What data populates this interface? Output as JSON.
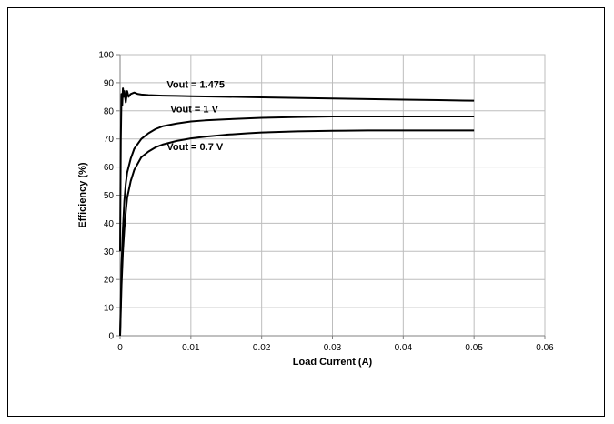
{
  "chart_data": {
    "type": "line",
    "xlabel": "Load Current (A)",
    "ylabel": "Efficiency (%)",
    "xlim": [
      0,
      0.06
    ],
    "ylim": [
      0,
      100
    ],
    "x_ticks": [
      "0",
      "0.01",
      "0.02",
      "0.03",
      "0.04",
      "0.05",
      "0.06"
    ],
    "y_ticks": [
      "0",
      "10",
      "20",
      "30",
      "40",
      "50",
      "60",
      "70",
      "80",
      "90",
      "100"
    ],
    "grid": true,
    "line_color": "#000000",
    "series": [
      {
        "name": "Vout = 1.475",
        "x": [
          0,
          0.0001,
          0.0002,
          0.0003,
          0.0004,
          0.0005,
          0.0006,
          0.0008,
          0.001,
          0.0012,
          0.0015,
          0.002,
          0.0025,
          0.003,
          0.004,
          0.006,
          0.008,
          0.01,
          0.015,
          0.02,
          0.025,
          0.03,
          0.035,
          0.04,
          0.045,
          0.05
        ],
        "y": [
          30,
          70,
          86,
          82,
          88,
          85,
          87,
          83,
          87,
          85,
          86,
          86.5,
          86,
          85.8,
          85.6,
          85.4,
          85.3,
          85.2,
          85,
          84.8,
          84.6,
          84.4,
          84.2,
          84,
          83.8,
          83.6
        ]
      },
      {
        "name": "Vout = 1 V",
        "x": [
          0,
          0.0002,
          0.0004,
          0.0006,
          0.0008,
          0.001,
          0.0015,
          0.002,
          0.003,
          0.004,
          0.005,
          0.006,
          0.008,
          0.01,
          0.012,
          0.015,
          0.018,
          0.02,
          0.025,
          0.03,
          0.035,
          0.04,
          0.045,
          0.05
        ],
        "y": [
          0,
          25,
          38,
          48,
          54,
          58,
          63,
          66.5,
          70,
          72,
          73.5,
          74.5,
          75.5,
          76.2,
          76.6,
          77,
          77.3,
          77.5,
          77.8,
          78,
          78,
          78,
          78,
          78
        ]
      },
      {
        "name": "Vout = 0.7 V",
        "x": [
          0,
          0.0002,
          0.0004,
          0.0006,
          0.0008,
          0.001,
          0.0015,
          0.002,
          0.003,
          0.004,
          0.005,
          0.006,
          0.008,
          0.01,
          0.012,
          0.015,
          0.018,
          0.02,
          0.025,
          0.03,
          0.035,
          0.04,
          0.045,
          0.05
        ],
        "y": [
          0,
          18,
          30,
          38,
          44,
          49,
          55,
          59,
          63.5,
          65.5,
          67,
          68,
          69.3,
          70.2,
          70.8,
          71.5,
          72,
          72.3,
          72.7,
          72.9,
          73,
          73,
          73,
          73
        ]
      }
    ]
  }
}
